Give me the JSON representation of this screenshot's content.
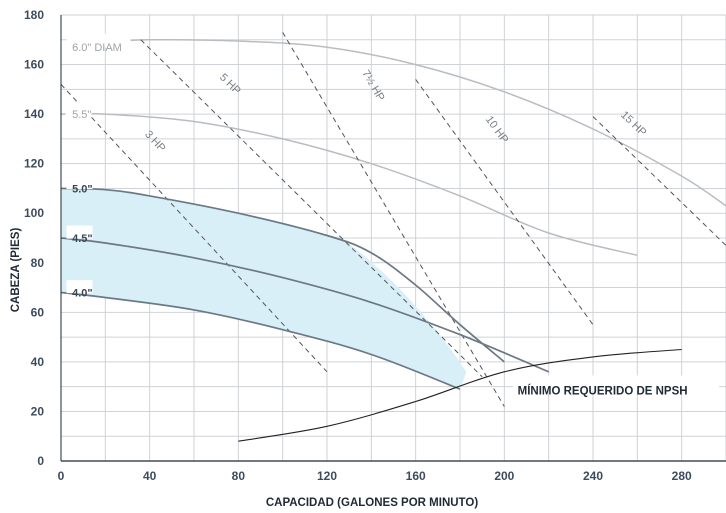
{
  "chart_data": {
    "type": "line",
    "xlabel": "CAPACIDAD (GALONES POR MINUTO)",
    "ylabel": "CABEZA (PIES)",
    "xlim": [
      0,
      300
    ],
    "ylim": [
      0,
      180
    ],
    "x_ticks": [
      {
        "value": 0,
        "label": "0"
      },
      {
        "value": 40,
        "label": "40"
      },
      {
        "value": 80,
        "label": "80"
      },
      {
        "value": 120,
        "label": "120"
      },
      {
        "value": 160,
        "label": "160"
      },
      {
        "value": 200,
        "label": "200"
      },
      {
        "value": 240,
        "label": "240"
      },
      {
        "value": 280,
        "label": "280"
      }
    ],
    "y_ticks": [
      {
        "value": 0,
        "label": "0"
      },
      {
        "value": 20,
        "label": "20"
      },
      {
        "value": 40,
        "label": "40"
      },
      {
        "value": 60,
        "label": "60"
      },
      {
        "value": 80,
        "label": "80"
      },
      {
        "value": 100,
        "label": "100"
      },
      {
        "value": 120,
        "label": "120"
      },
      {
        "value": 140,
        "label": "140"
      },
      {
        "value": 160,
        "label": "160"
      },
      {
        "value": 180,
        "label": "180"
      }
    ],
    "grid": true,
    "colors": {
      "grid": "#cfd2d6",
      "grey_curve": "#b9bcc0",
      "dark_curve": "#6b7885",
      "hp_line": "#555555",
      "fill": "#d9eff8",
      "npsh": "#222222"
    },
    "impeller_curves": [
      {
        "label": "6.0\" DIAM",
        "style": "grey",
        "points": [
          [
            6,
            167
          ],
          [
            20,
            169
          ],
          [
            40,
            170
          ],
          [
            80,
            169.5
          ],
          [
            120,
            167
          ],
          [
            160,
            160
          ],
          [
            200,
            149
          ],
          [
            240,
            134
          ],
          [
            280,
            115
          ],
          [
            300,
            103
          ]
        ]
      },
      {
        "label": "5.5\"",
        "style": "grey",
        "points": [
          [
            0,
            140
          ],
          [
            20,
            140
          ],
          [
            60,
            137
          ],
          [
            100,
            130
          ],
          [
            140,
            120
          ],
          [
            180,
            107
          ],
          [
            220,
            92
          ],
          [
            260,
            83
          ]
        ]
      },
      {
        "label": "5.0\"",
        "style": "dark",
        "points": [
          [
            0,
            110
          ],
          [
            20,
            109.5
          ],
          [
            40,
            107
          ],
          [
            80,
            100
          ],
          [
            120,
            91
          ],
          [
            140,
            84
          ],
          [
            160,
            71
          ],
          [
            180,
            55
          ],
          [
            200,
            40
          ]
        ]
      },
      {
        "label": "4.5\"",
        "style": "dark",
        "points": [
          [
            0,
            90
          ],
          [
            20,
            88
          ],
          [
            60,
            82
          ],
          [
            100,
            74
          ],
          [
            140,
            64
          ],
          [
            180,
            51
          ],
          [
            220,
            36
          ]
        ]
      },
      {
        "label": "4.0\"",
        "style": "dark",
        "points": [
          [
            0,
            68
          ],
          [
            20,
            66
          ],
          [
            60,
            61
          ],
          [
            100,
            53
          ],
          [
            140,
            43
          ],
          [
            180,
            29
          ]
        ]
      }
    ],
    "operating_region": {
      "upper": [
        [
          0,
          110
        ],
        [
          20,
          109.5
        ],
        [
          40,
          107
        ],
        [
          80,
          100
        ],
        [
          120,
          91
        ],
        [
          128,
          89
        ],
        [
          150,
          72
        ],
        [
          170,
          52
        ],
        [
          183,
          36
        ]
      ],
      "lower": [
        [
          0,
          68
        ],
        [
          20,
          66
        ],
        [
          60,
          61
        ],
        [
          100,
          53
        ],
        [
          140,
          43
        ],
        [
          160,
          36
        ],
        [
          180,
          29
        ]
      ]
    },
    "hp_lines": [
      {
        "label": "3 HP",
        "from": [
          0,
          152
        ],
        "to": [
          120,
          36
        ]
      },
      {
        "label": "5 HP",
        "from": [
          36,
          170
        ],
        "to": [
          190,
          34
        ]
      },
      {
        "label": "7½ HP",
        "from": [
          100,
          173
        ],
        "to": [
          200,
          22
        ]
      },
      {
        "label": "10 HP",
        "from": [
          160,
          154
        ],
        "to": [
          240,
          55
        ]
      },
      {
        "label": "15 HP",
        "from": [
          240,
          139
        ],
        "to": [
          300,
          87
        ]
      }
    ],
    "npsh_curve": {
      "label": "MÍNIMO REQUERIDO DE NPSH",
      "points": [
        [
          80,
          8
        ],
        [
          120,
          14
        ],
        [
          160,
          24
        ],
        [
          200,
          36
        ],
        [
          240,
          42
        ],
        [
          280,
          45
        ]
      ]
    }
  }
}
